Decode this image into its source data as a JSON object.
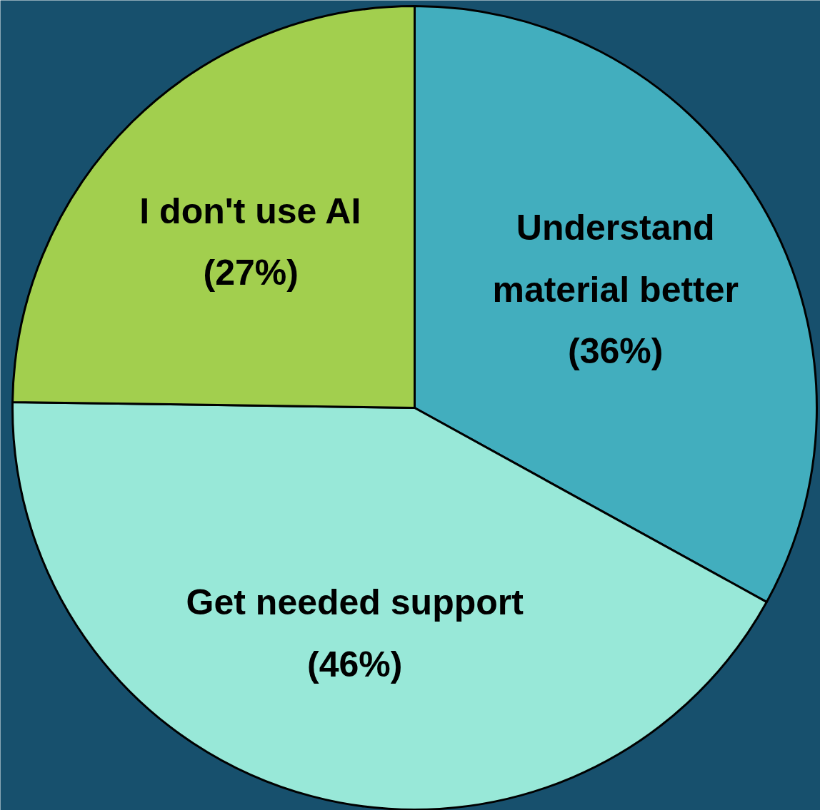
{
  "chart_data": {
    "type": "pie",
    "categories": [
      "Understand material better",
      "Get needed support",
      "I don't use AI"
    ],
    "values": [
      36,
      46,
      27
    ],
    "colors": [
      "#42aebe",
      "#98e8d8",
      "#a2cf4e"
    ],
    "value_labels": [
      "(36%)",
      "(46%)",
      "(27%)"
    ]
  }
}
